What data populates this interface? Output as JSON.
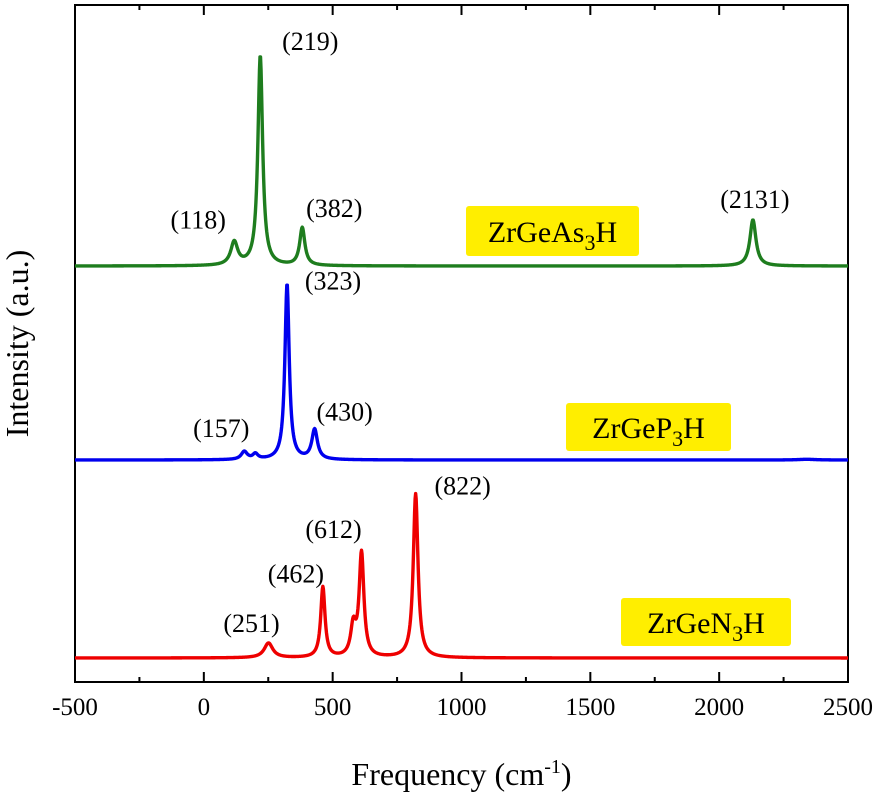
{
  "chart_data": {
    "type": "line",
    "xlabel": {
      "main": "Frequency (cm",
      "sup": "-1",
      "tail": ")"
    },
    "ylabel": "Intensity (a.u.)",
    "xlim": [
      -500,
      2500
    ],
    "xticks": [
      -500,
      0,
      500,
      1000,
      1500,
      2000,
      2500
    ],
    "ytick_labels": false,
    "series": [
      {
        "name": "ZrGeAs3H",
        "label": {
          "pre": "ZrGeAs",
          "sub": "3",
          "post": "H"
        },
        "color": "#1e7d1e",
        "baseline_norm": 0.0,
        "peaks": [
          {
            "x": 118,
            "height": 0.11,
            "width": 16,
            "label": "(118)"
          },
          {
            "x": 219,
            "height": 1.0,
            "width": 11,
            "label": "(219)"
          },
          {
            "x": 382,
            "height": 0.18,
            "width": 12,
            "label": "(382)"
          },
          {
            "x": 2131,
            "height": 0.22,
            "width": 14,
            "label": "(2131)"
          }
        ]
      },
      {
        "name": "ZrGeP3H",
        "label": {
          "pre": "ZrGeP",
          "sub": "3",
          "post": "H"
        },
        "color": "#0000ee",
        "baseline_norm": 0.0,
        "peaks": [
          {
            "x": 157,
            "height": 0.045,
            "width": 14,
            "label": "(157)"
          },
          {
            "x": 200,
            "height": 0.03,
            "width": 12,
            "label": ""
          },
          {
            "x": 323,
            "height": 1.0,
            "width": 10,
            "label": "(323)"
          },
          {
            "x": 430,
            "height": 0.17,
            "width": 13,
            "label": "(430)"
          },
          {
            "x": 2340,
            "height": 0.004,
            "width": 40,
            "label": ""
          }
        ]
      },
      {
        "name": "ZrGeN3H",
        "label": {
          "pre": "ZrGeN",
          "sub": "3",
          "post": "H"
        },
        "color": "#ee0000",
        "baseline_norm": 0.0,
        "peaks": [
          {
            "x": 251,
            "height": 0.09,
            "width": 20,
            "label": "(251)"
          },
          {
            "x": 462,
            "height": 0.43,
            "width": 10,
            "label": "(462)"
          },
          {
            "x": 580,
            "height": 0.18,
            "width": 12,
            "label": ""
          },
          {
            "x": 612,
            "height": 0.63,
            "width": 11,
            "label": "(612)"
          },
          {
            "x": 822,
            "height": 1.0,
            "width": 11,
            "label": "(822)"
          }
        ]
      }
    ]
  }
}
